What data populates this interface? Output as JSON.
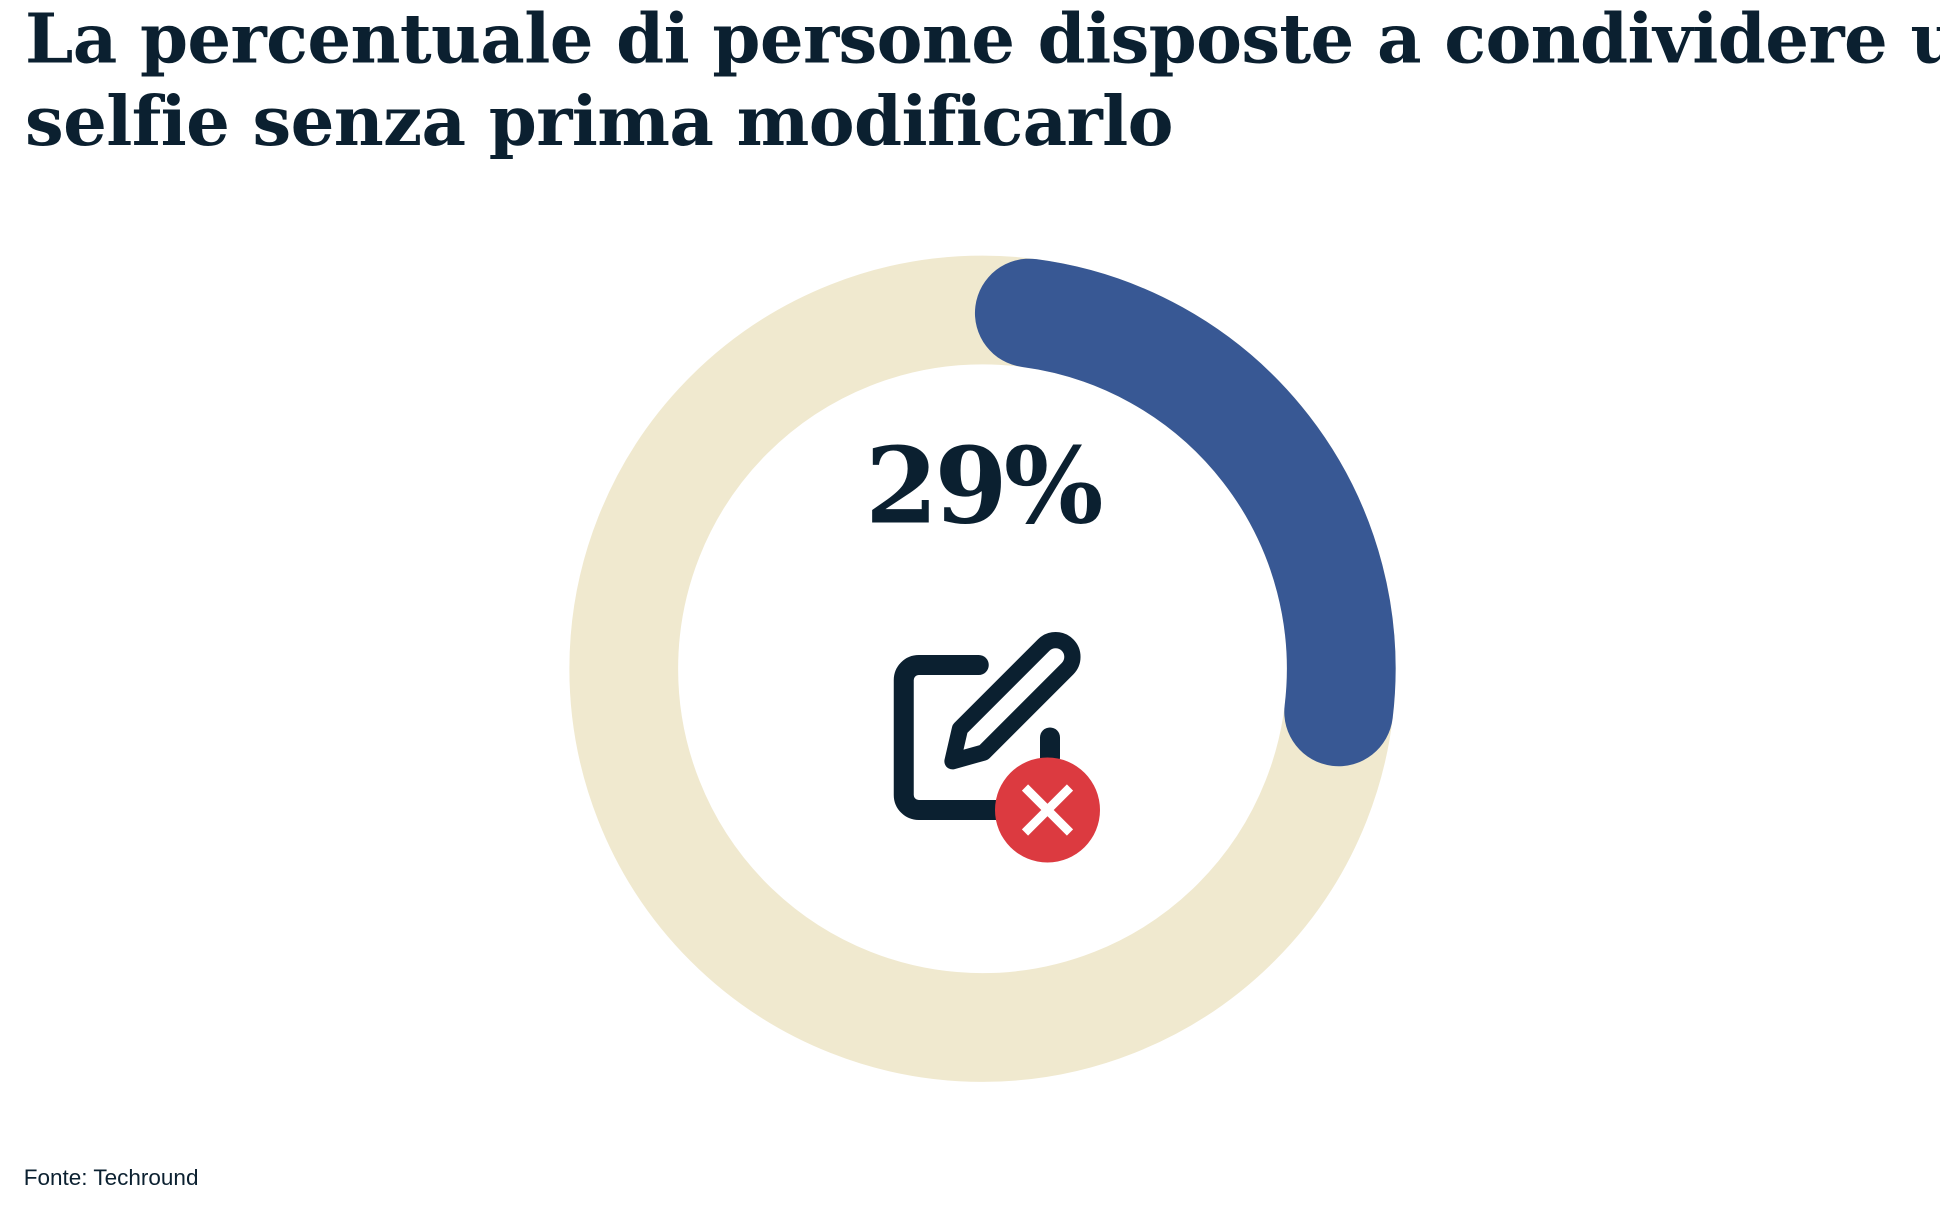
{
  "chart_data": {
    "type": "pie",
    "variant": "donut",
    "title": "La percentuale di persone disposte a condividere un selfie senza prima modificarlo",
    "title_lines": [
      "La percentuale di persone disposte a condividere un",
      "selfie senza prima modificarlo"
    ],
    "value": 29,
    "value_label": "29%",
    "max": 100,
    "colors": {
      "value": "#385894",
      "track": "#f0e9cf",
      "text": "#0b2030",
      "badge": "#dc3a40"
    },
    "center_icon": "edit-forbidden-icon",
    "source": "Fonte: Techround"
  }
}
